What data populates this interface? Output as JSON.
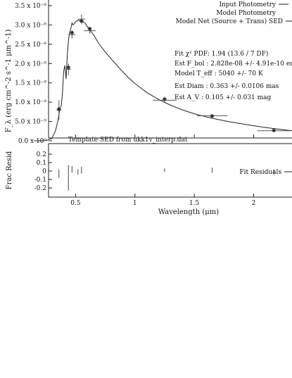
{
  "chart_data": [
    {
      "type": "line",
      "panel": "sed",
      "xlabel": "",
      "ylabel": "F_λ (erg cm^-2 s^-1 μm^-1)",
      "xlim": [
        0,
        2.4
      ],
      "ylim": [
        0,
        3.5e-08
      ],
      "yticks": [
        {
          "value": 0.0,
          "label": "0.0 x 10⁰"
        },
        {
          "value": 5e-09,
          "label": "5.0 x 10⁻⁹"
        },
        {
          "value": 1e-08,
          "label": "1.0 x 10⁻⁸"
        },
        {
          "value": 1.5e-08,
          "label": "1.5 x 10⁻⁸"
        },
        {
          "value": 2e-08,
          "label": "2.0 x 10⁻⁸"
        },
        {
          "value": 2.5e-08,
          "label": "2.5 x 10⁻⁸"
        },
        {
          "value": 3e-08,
          "label": "3.0 x 10⁻⁸"
        },
        {
          "value": 3.5e-08,
          "label": "3.5 x 10⁻⁸"
        }
      ],
      "legend": {
        "placement": "top-right",
        "entries": [
          "Input Photometry",
          "Model Photometry",
          "Model Net (Source + Trans) SED"
        ]
      },
      "annotations": [
        "Fit χ² PDF: 1.94 (13.6 / 7 DF)",
        "Est F_bol : 2.828e-08 +/- 4.91e-10 erg c",
        "Model T_eff : 5040 +/- 70 K",
        "Est Diam : 0.363 +/- 0.0106 mas",
        "Est A_V : 0.105 +/- 0.031 mag"
      ],
      "series": [
        {
          "name": "Model Net (Source + Trans) SED",
          "x": [
            0.15,
            0.2,
            0.25,
            0.3,
            0.33,
            0.35,
            0.37,
            0.38,
            0.39,
            0.4,
            0.41,
            0.42,
            0.43,
            0.44,
            0.45,
            0.46,
            0.47,
            0.48,
            0.5,
            0.52,
            0.55,
            0.58,
            0.6,
            0.65,
            0.7,
            0.75,
            0.8,
            0.85,
            0.9,
            0.95,
            1.0,
            1.1,
            1.2,
            1.3,
            1.4,
            1.5,
            1.6,
            1.7,
            1.8,
            1.9,
            2.0,
            2.1,
            2.2,
            2.3,
            2.4
          ],
          "y": [
            0,
            0,
            5e-11,
            6e-10,
            2.5e-09,
            5e-09,
            8.5e-09,
            9e-09,
            1.25e-08,
            1.8e-08,
            1.95e-08,
            1.6e-08,
            2.2e-08,
            2.6e-08,
            2.8e-08,
            2.9e-08,
            3.05e-08,
            3e-08,
            3.08e-08,
            3.12e-08,
            3.1e-08,
            3.05e-08,
            2.95e-08,
            2.75e-08,
            2.5e-08,
            2.3e-08,
            2.12e-08,
            1.95e-08,
            1.78e-08,
            1.62e-08,
            1.48e-08,
            1.25e-08,
            1.07e-08,
            9.2e-09,
            8e-09,
            7e-09,
            6.2e-09,
            5.5e-09,
            4.9e-09,
            4.4e-09,
            3.9e-09,
            3.45e-09,
            3.05e-09,
            2.7e-09,
            2.4e-09
          ]
        },
        {
          "name": "Input Photometry",
          "points": [
            {
              "x": 0.36,
              "y": 8e-09,
              "xerr": 0.02,
              "yerr": 2.5e-09
            },
            {
              "x": 0.44,
              "y": 1.85e-08,
              "xerr": 0.02,
              "yerr": 1.5e-09
            },
            {
              "x": 0.47,
              "y": 2.75e-08,
              "xerr": 0.03,
              "yerr": 1e-09
            },
            {
              "x": 0.55,
              "y": 3.15e-08,
              "xerr": 0.03,
              "yerr": 1.2e-09
            },
            {
              "x": 0.62,
              "y": 2.85e-08,
              "xerr": 0.05,
              "yerr": 8e-10
            },
            {
              "x": 1.25,
              "y": 1.05e-08,
              "xerr": 0.1,
              "yerr": 4e-10
            },
            {
              "x": 1.65,
              "y": 6.5e-09,
              "xerr": 0.13,
              "yerr": 3e-10
            },
            {
              "x": 2.17,
              "y": 2.6e-09,
              "xerr": 0.14,
              "yerr": 2e-10
            }
          ]
        },
        {
          "name": "Model Photometry",
          "points": [
            {
              "x": 0.36,
              "y": 8.2e-09
            },
            {
              "x": 0.44,
              "y": 1.9e-08
            },
            {
              "x": 0.47,
              "y": 2.8e-08
            },
            {
              "x": 0.55,
              "y": 3.1e-08
            },
            {
              "x": 0.62,
              "y": 2.9e-08
            },
            {
              "x": 1.25,
              "y": 1.08e-08
            },
            {
              "x": 1.65,
              "y": 6.4e-09
            },
            {
              "x": 2.17,
              "y": 2.7e-09
            }
          ]
        }
      ]
    },
    {
      "type": "scatter",
      "panel": "residuals",
      "title": "Template SED from ukk1v_interp.dat",
      "xlabel": "Wavelength (μm)",
      "ylabel": "Frac Resid",
      "xlim": [
        0,
        2.4
      ],
      "ylim": [
        -0.25,
        0.25
      ],
      "xticks": [
        {
          "value": 0.5,
          "label": "0.5"
        },
        {
          "value": 1.0,
          "label": "1"
        },
        {
          "value": 1.5,
          "label": "1.5"
        },
        {
          "value": 2.0,
          "label": "2"
        }
      ],
      "yticks": [
        {
          "value": 0.2,
          "label": "0.2"
        },
        {
          "value": 0.1,
          "label": "0.1"
        },
        {
          "value": 0.0,
          "label": "0"
        },
        {
          "value": -0.1,
          "label": "-0.1"
        },
        {
          "value": -0.2,
          "label": "-0.2"
        }
      ],
      "legend": {
        "placement": "top-right",
        "entries": [
          "Fit Residuals"
        ]
      },
      "series": [
        {
          "name": "Fit Residuals",
          "points": [
            {
              "x": 0.36,
              "y": -0.03,
              "yerr": 0.05
            },
            {
              "x": 0.44,
              "y": -0.08,
              "yerr": 0.15
            },
            {
              "x": 0.47,
              "y": 0.02,
              "yerr": 0.04
            },
            {
              "x": 0.52,
              "y": -0.01,
              "yerr": 0.03
            },
            {
              "x": 0.55,
              "y": 0.01,
              "yerr": 0.04
            },
            {
              "x": 1.25,
              "y": 0.01,
              "yerr": 0.02
            },
            {
              "x": 1.65,
              "y": 0.01,
              "yerr": 0.03
            },
            {
              "x": 2.17,
              "y": -0.01,
              "yerr": 0.03
            }
          ]
        }
      ]
    }
  ]
}
